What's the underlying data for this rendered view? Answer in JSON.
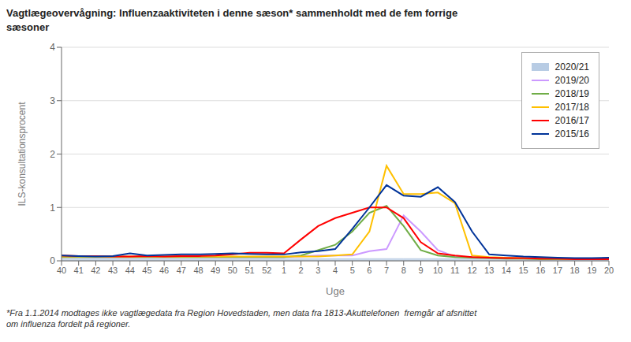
{
  "chart_data": {
    "type": "line",
    "title": "Vagtlægeovervågning: Influenzaaktiviteten i denne sæson* sammenholdt med de fem forrige\nsæsoner",
    "x_label": "Uge",
    "y_label": "ILS-konsultationsprocent",
    "annotations": [
      "*Fra 1.1.2014 modtages ikke vagtlægedata fra Region Hovedstaden, men data fra 1813-Akuttelefonen  fremgår af afsnittet\nom influenza fordelt på regioner."
    ],
    "categories": [
      "40",
      "41",
      "42",
      "43",
      "44",
      "45",
      "46",
      "47",
      "48",
      "49",
      "50",
      "51",
      "52",
      "1",
      "2",
      "3",
      "4",
      "5",
      "6",
      "7",
      "8",
      "9",
      "10",
      "11",
      "12",
      "13",
      "14",
      "15",
      "16",
      "17",
      "18",
      "19",
      "20"
    ],
    "ylim": [
      0,
      4
    ],
    "yticks": [
      0,
      1,
      2,
      3,
      4
    ],
    "grid": true,
    "legend": "upper right",
    "series": [
      {
        "name": "2020/21",
        "type": "area",
        "color": "#B8CCE4",
        "values": [
          0.04,
          0.04,
          0.04,
          0.04,
          0.04,
          0.04,
          0.04,
          0.04,
          0.04,
          0.04,
          0.04,
          0.04,
          0.04,
          0.04,
          0.04,
          0.04,
          0.04,
          0.04,
          0.04,
          0.04,
          0.04,
          0.04,
          0.04,
          0.04,
          0.04,
          0.04,
          0.04,
          0.04,
          0.04,
          0.04,
          0.04,
          0.04,
          0.04
        ]
      },
      {
        "name": "2019/20",
        "type": "line",
        "color": "#CC99FF",
        "values": [
          0.07,
          0.07,
          0.07,
          0.07,
          0.07,
          0.07,
          0.07,
          0.07,
          0.07,
          0.07,
          0.07,
          0.07,
          0.07,
          0.07,
          0.08,
          0.1,
          0.1,
          0.1,
          0.18,
          0.22,
          0.85,
          0.55,
          0.2,
          0.08,
          0.07,
          0.06,
          0.05,
          0.04,
          0.04,
          0.03,
          0.03,
          0.03,
          0.03
        ]
      },
      {
        "name": "2018/19",
        "type": "line",
        "color": "#70AD47",
        "values": [
          0.07,
          0.07,
          0.07,
          0.07,
          0.07,
          0.07,
          0.07,
          0.07,
          0.07,
          0.07,
          0.07,
          0.07,
          0.07,
          0.07,
          0.1,
          0.2,
          0.3,
          0.55,
          0.9,
          1.03,
          0.65,
          0.2,
          0.1,
          0.07,
          0.06,
          0.05,
          0.04,
          0.04,
          0.03,
          0.03,
          0.03,
          0.03,
          0.03
        ]
      },
      {
        "name": "2017/18",
        "type": "line",
        "color": "#FFC000",
        "values": [
          0.08,
          0.08,
          0.08,
          0.08,
          0.08,
          0.08,
          0.08,
          0.08,
          0.08,
          0.08,
          0.08,
          0.08,
          0.08,
          0.08,
          0.08,
          0.08,
          0.1,
          0.12,
          0.55,
          1.78,
          1.25,
          1.25,
          1.28,
          1.08,
          0.1,
          0.07,
          0.06,
          0.05,
          0.04,
          0.04,
          0.03,
          0.03,
          0.03
        ]
      },
      {
        "name": "2016/17",
        "type": "line",
        "color": "#FF0000",
        "values": [
          0.1,
          0.09,
          0.09,
          0.08,
          0.08,
          0.09,
          0.08,
          0.09,
          0.09,
          0.1,
          0.12,
          0.15,
          0.15,
          0.14,
          0.4,
          0.65,
          0.8,
          0.9,
          1.0,
          1.0,
          0.8,
          0.35,
          0.14,
          0.1,
          0.07,
          0.06,
          0.05,
          0.05,
          0.04,
          0.04,
          0.03,
          0.03,
          0.03
        ]
      },
      {
        "name": "2015/16",
        "type": "line",
        "color": "#003399",
        "values": [
          0.1,
          0.09,
          0.08,
          0.09,
          0.14,
          0.1,
          0.11,
          0.12,
          0.12,
          0.13,
          0.14,
          0.13,
          0.12,
          0.12,
          0.16,
          0.18,
          0.22,
          0.6,
          1.0,
          1.42,
          1.22,
          1.2,
          1.38,
          1.1,
          0.55,
          0.12,
          0.1,
          0.08,
          0.07,
          0.06,
          0.05,
          0.05,
          0.06
        ]
      }
    ]
  }
}
